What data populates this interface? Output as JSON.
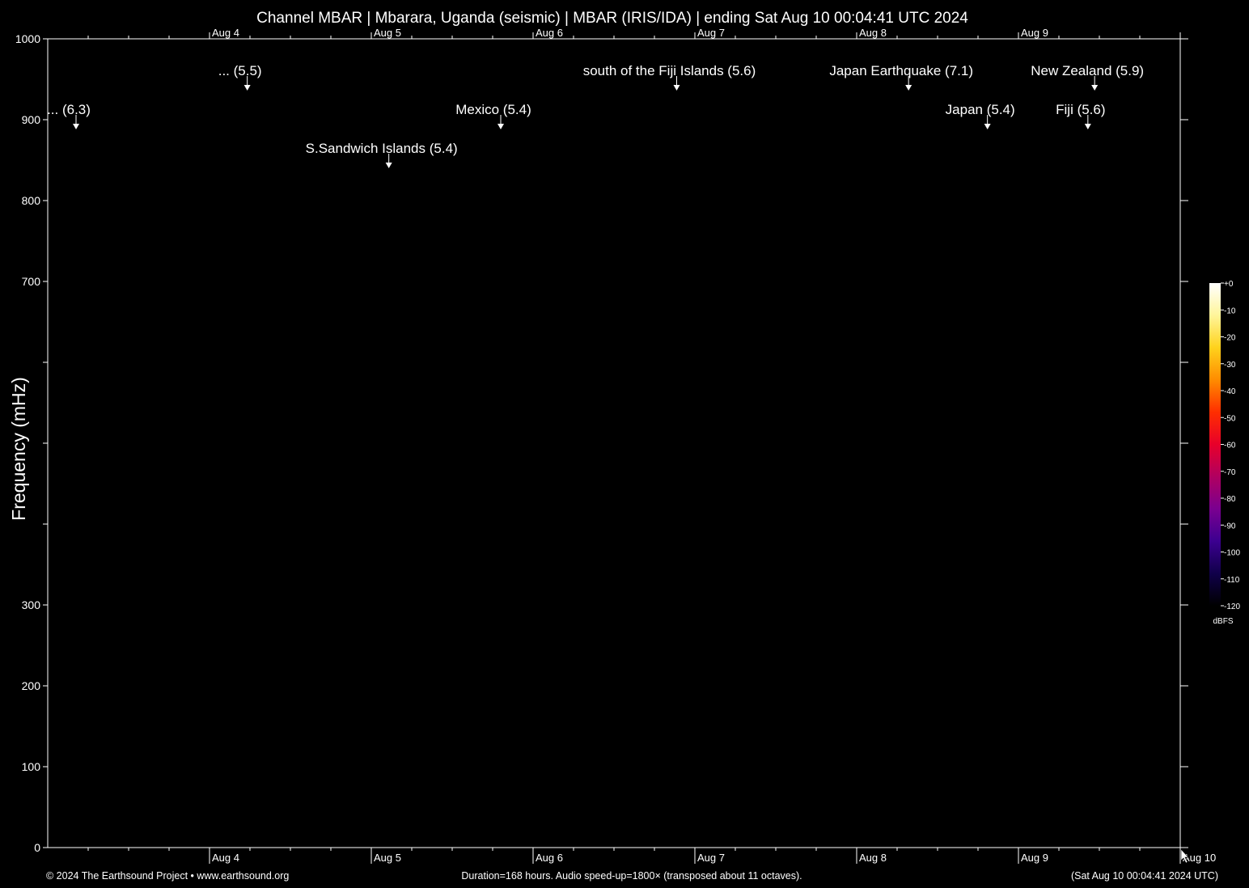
{
  "chart_data": {
    "type": "heatmap",
    "title": "Channel MBAR | Mbarara, Uganda (seismic) | MBAR (IRIS/IDA) | ending Sat Aug 10 00:04:41 UTC 2024",
    "ylabel": "Frequency (mHz)",
    "ylim": [
      0,
      1000
    ],
    "y_ticks": [
      0,
      100,
      200,
      300,
      "",
      "",
      "",
      700,
      800,
      900,
      1000
    ],
    "x_range_hours": [
      0,
      168
    ],
    "x_ticks": [
      {
        "label": "Aug 4",
        "hour": 24
      },
      {
        "label": "Aug 5",
        "hour": 48
      },
      {
        "label": "Aug 6",
        "hour": 72
      },
      {
        "label": "Aug 7",
        "hour": 96
      },
      {
        "label": "Aug 8",
        "hour": 120
      },
      {
        "label": "Aug 9",
        "hour": 144
      },
      {
        "label": "Aug 10",
        "hour": 168
      }
    ],
    "events": [
      {
        "label": "... (6.3)",
        "hour": 4.2,
        "row": 2
      },
      {
        "label": "... (5.5)",
        "hour": 29.6,
        "row": 1
      },
      {
        "label": "S.Sandwich Islands (5.4)",
        "hour": 50.6,
        "row": 3
      },
      {
        "label": "Mexico (5.4)",
        "hour": 67.2,
        "row": 2
      },
      {
        "label": "south of the Fiji Islands (5.6)",
        "hour": 93.3,
        "row": 1
      },
      {
        "label": "Japan Earthquake (7.1)",
        "hour": 127.7,
        "row": 1
      },
      {
        "label": "Japan (5.4)",
        "hour": 139.4,
        "row": 2
      },
      {
        "label": "New Zealand (5.9)",
        "hour": 155.3,
        "row": 1
      },
      {
        "label": "Fiji (5.6)",
        "hour": 154.3,
        "row": 2
      }
    ],
    "colorbar": {
      "unit": "dBFS",
      "ticks": [
        0,
        -10,
        -20,
        -30,
        -40,
        -50,
        -60,
        -70,
        -80,
        -90,
        -100,
        -110,
        -120
      ],
      "tick_labels": [
        "+0",
        "-10",
        "-20",
        "-30",
        "-40",
        "-50",
        "-60",
        "-70",
        "-80",
        "-90",
        "-100",
        "-110",
        "-120"
      ],
      "colors": [
        "#ffffff",
        "#fff59a",
        "#ffd21c",
        "#ff8c00",
        "#ff2e00",
        "#e8002a",
        "#b00060",
        "#7a0090",
        "#3c0090",
        "#10004a",
        "#000000"
      ]
    }
  },
  "footer": {
    "left": "© 2024 The Earthsound Project • www.earthsound.org",
    "center": "Duration=168 hours. Audio speed-up=1800× (transposed about 11 octaves).",
    "right": "(Sat Aug 10 00:04:41 2024 UTC)"
  },
  "colors": {
    "background": "#000000",
    "foreground": "#ffffff"
  }
}
